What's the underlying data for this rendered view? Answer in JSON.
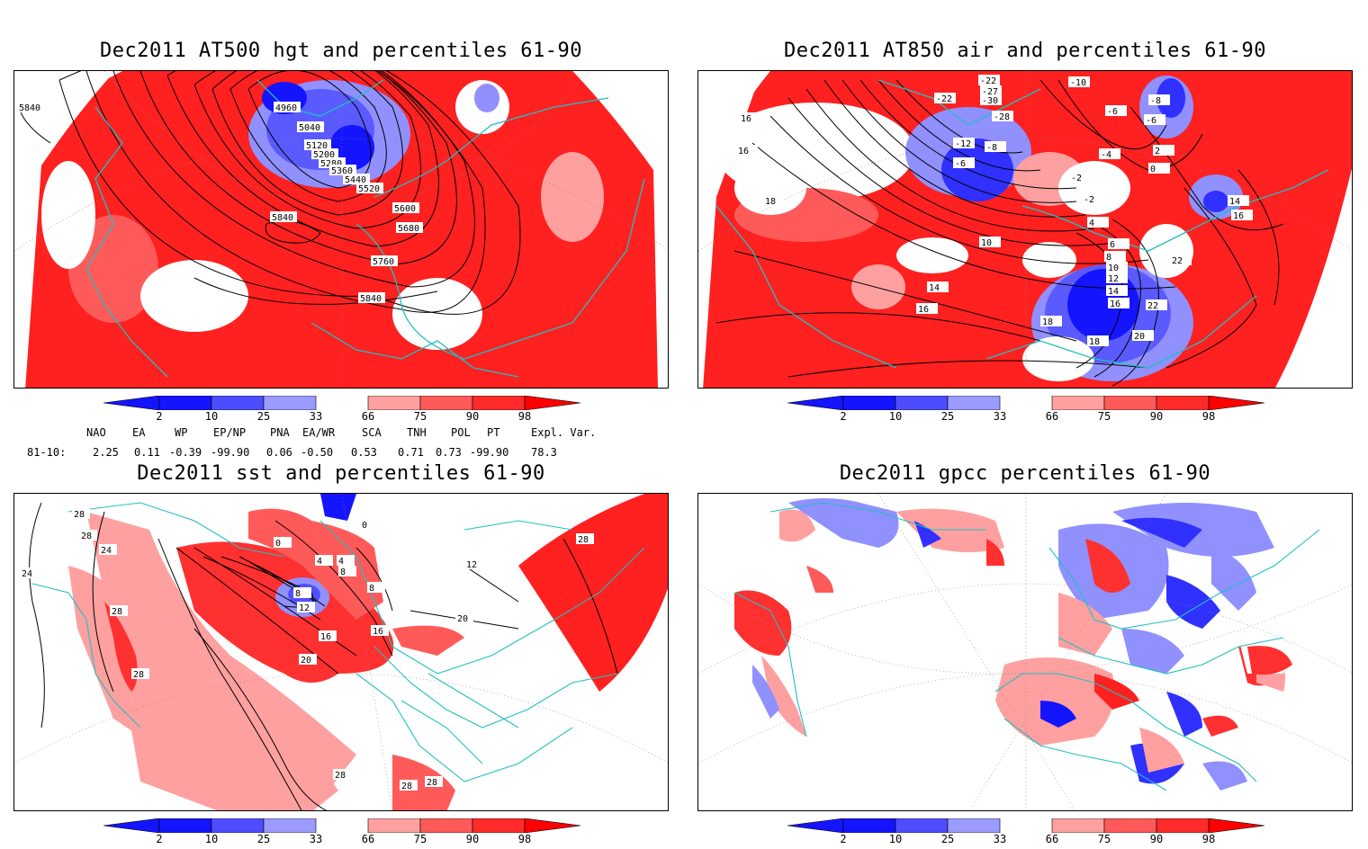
{
  "panels": {
    "p1": {
      "title": "Dec2011 AT500 hgt and percentiles 61-90",
      "contour_labels": [
        "5840",
        "4960",
        "5040",
        "5120",
        "5200",
        "5280",
        "5360",
        "5440",
        "5520",
        "5600",
        "5680",
        "5760",
        "5840",
        "5840"
      ]
    },
    "p2": {
      "title": "Dec2011 AT850 air and percentiles 61-90",
      "contour_labels": [
        "-22",
        "-22",
        "-27",
        "-30",
        "-28",
        "-12",
        "-8",
        "-6",
        "-10",
        "-8",
        "-6",
        "-6",
        "-4",
        "-2",
        "-2",
        "0",
        "2",
        "4",
        "6",
        "8",
        "10",
        "12",
        "14",
        "16",
        "18",
        "16",
        "16",
        "14",
        "16",
        "14",
        "16",
        "18",
        "10",
        "22",
        "22",
        "20",
        "18"
      ]
    },
    "p3": {
      "title": "Dec2011 sst and percentiles 61-90",
      "contour_labels": [
        "28",
        "24",
        "28",
        "24",
        "0",
        "0",
        "4",
        "4",
        "8",
        "8",
        "12",
        "8",
        "16",
        "16",
        "20",
        "20",
        "28",
        "28",
        "28",
        "12",
        "28",
        "28",
        "28"
      ]
    },
    "p4": {
      "title": "Dec2011 gpcc percentiles 61-90"
    }
  },
  "colorbar": {
    "ticks": [
      "2",
      "10",
      "25",
      "33",
      "66",
      "75",
      "90",
      "98"
    ],
    "colors": {
      "deep_blue": "#1414ff",
      "mid_blue": "#4d4dff",
      "light_blue": "#9b9bff",
      "pale_red": "#ffa0a0",
      "mid_red": "#ff5a5a",
      "red": "#ff2a2a",
      "deep_red": "#ff0000"
    }
  },
  "stats": {
    "header": [
      "NAO",
      "EA",
      "WP",
      "EP/NP",
      "PNA",
      "EA/WR",
      "SCA",
      "TNH",
      "POL",
      "PT",
      "Expl. Var."
    ],
    "row_label": "81-10:",
    "values": [
      "2.25",
      "0.11",
      "-0.39",
      "-99.90",
      "0.06",
      "-0.50",
      "0.53",
      "0.71",
      "0.73",
      "-99.90",
      "78.3"
    ]
  },
  "map_colors": {
    "coast": "#20c0c0",
    "red": "#ff2020",
    "pink": "#ffa0a0",
    "blue": "#3030ff",
    "lightblue": "#9090ff"
  }
}
